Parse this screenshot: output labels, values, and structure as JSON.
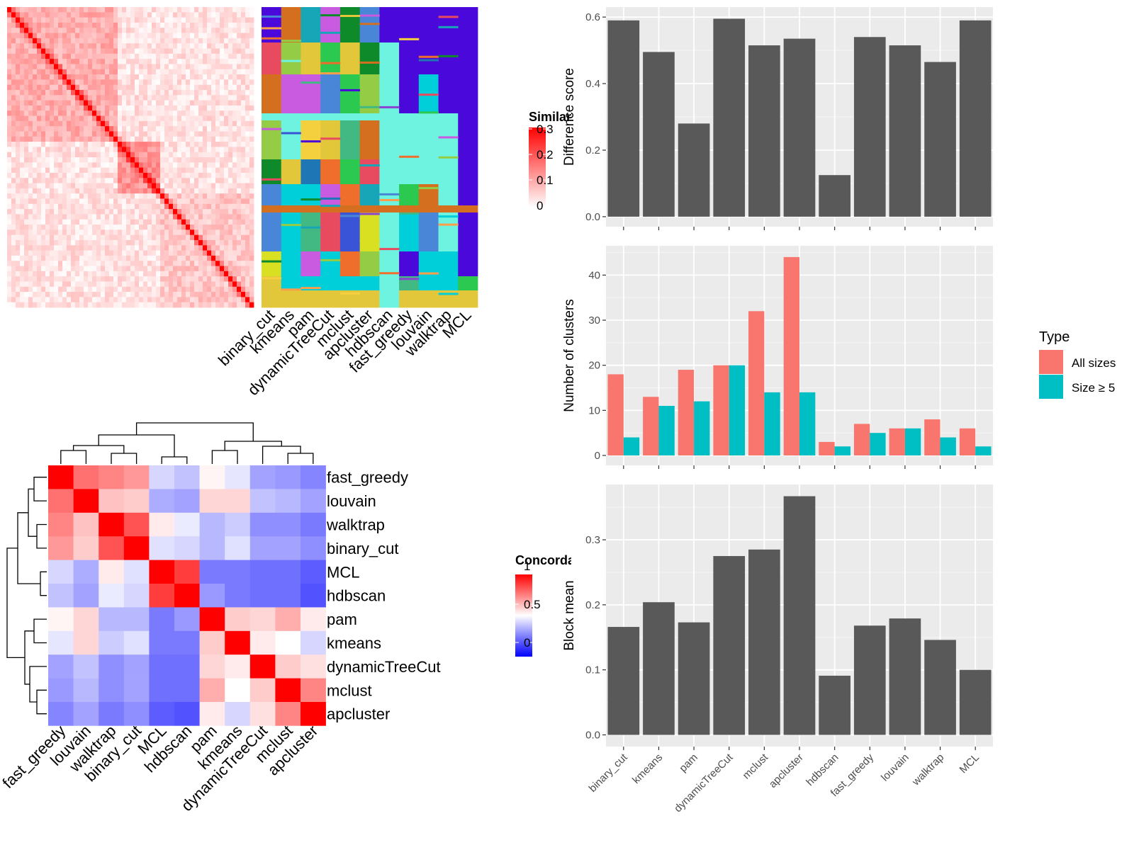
{
  "colors": {
    "panel_bg": "#EBEBEB",
    "bar_dark": "#595959",
    "all_sizes": "#F8766D",
    "size_ge5": "#00BFC4",
    "sim_high": "#FF0000",
    "conc_high": "#FF0000",
    "conc_mid": "#FFFFFF",
    "conc_low": "#0000FF"
  },
  "similarity_heatmap": {
    "legend_title": "Similarity",
    "legend_ticks": [
      "0.3",
      "0.2",
      "0.1",
      "0"
    ]
  },
  "cluster_map": {
    "methods": [
      "binary_cut",
      "kmeans",
      "pam",
      "dynamicTreeCut",
      "mclust",
      "apcluster",
      "hdbscan",
      "fast_greedy",
      "louvain",
      "walktrap",
      "MCL"
    ]
  },
  "concordance": {
    "legend_title": "Concordance",
    "legend_ticks": [
      "1",
      "0.5",
      "0"
    ],
    "methods": [
      "fast_greedy",
      "louvain",
      "walktrap",
      "binary_cut",
      "MCL",
      "hdbscan",
      "pam",
      "kmeans",
      "dynamicTreeCut",
      "mclust",
      "apcluster"
    ],
    "matrix": [
      [
        1.0,
        0.78,
        0.74,
        0.7,
        0.42,
        0.38,
        0.52,
        0.45,
        0.32,
        0.3,
        0.26
      ],
      [
        0.78,
        1.0,
        0.62,
        0.6,
        0.34,
        0.32,
        0.58,
        0.58,
        0.38,
        0.36,
        0.32
      ],
      [
        0.74,
        0.62,
        1.0,
        0.84,
        0.54,
        0.46,
        0.36,
        0.4,
        0.28,
        0.28,
        0.24
      ],
      [
        0.7,
        0.6,
        0.84,
        1.0,
        0.44,
        0.42,
        0.36,
        0.44,
        0.32,
        0.32,
        0.28
      ],
      [
        0.42,
        0.34,
        0.54,
        0.44,
        1.0,
        0.88,
        0.24,
        0.24,
        0.22,
        0.22,
        0.18
      ],
      [
        0.38,
        0.32,
        0.46,
        0.42,
        0.88,
        1.0,
        0.3,
        0.24,
        0.22,
        0.22,
        0.16
      ],
      [
        0.52,
        0.58,
        0.36,
        0.36,
        0.24,
        0.3,
        1.0,
        0.6,
        0.58,
        0.66,
        0.54
      ],
      [
        0.45,
        0.58,
        0.4,
        0.44,
        0.24,
        0.24,
        0.6,
        1.0,
        0.54,
        0.5,
        0.42
      ],
      [
        0.32,
        0.38,
        0.28,
        0.32,
        0.22,
        0.22,
        0.58,
        0.54,
        1.0,
        0.6,
        0.56
      ],
      [
        0.3,
        0.36,
        0.28,
        0.32,
        0.22,
        0.22,
        0.66,
        0.5,
        0.6,
        1.0,
        0.74
      ],
      [
        0.26,
        0.32,
        0.24,
        0.28,
        0.18,
        0.16,
        0.54,
        0.42,
        0.56,
        0.74,
        1.0
      ]
    ]
  },
  "chart_data": [
    {
      "type": "bar",
      "ylabel": "Difference score",
      "categories": [
        "binary_cut",
        "kmeans",
        "pam",
        "dynamicTreeCut",
        "mclust",
        "apcluster",
        "hdbscan",
        "fast_greedy",
        "louvain",
        "walktrap",
        "MCL"
      ],
      "values": [
        0.59,
        0.495,
        0.28,
        0.595,
        0.515,
        0.535,
        0.125,
        0.54,
        0.515,
        0.465,
        0.59
      ],
      "ylim": [
        -0.03,
        0.63
      ],
      "yticks": [
        0.0,
        0.2,
        0.4,
        0.6
      ],
      "ytick_labels": [
        "0.0",
        "0.2",
        "0.4",
        "0.6"
      ],
      "grid": true
    },
    {
      "type": "bar",
      "ylabel": "Number of clusters",
      "categories": [
        "binary_cut",
        "kmeans",
        "pam",
        "dynamicTreeCut",
        "mclust",
        "apcluster",
        "hdbscan",
        "fast_greedy",
        "louvain",
        "walktrap",
        "MCL"
      ],
      "series": [
        {
          "name": "All sizes",
          "values": [
            18,
            13,
            19,
            20,
            32,
            44,
            3,
            7,
            6,
            8,
            6
          ]
        },
        {
          "name": "Size ≥ 5",
          "values": [
            4,
            11,
            12,
            20,
            14,
            14,
            2,
            5,
            6,
            4,
            2
          ]
        }
      ],
      "ylim": [
        -2.2,
        46.5
      ],
      "yticks": [
        0,
        10,
        20,
        30,
        40
      ],
      "ytick_labels": [
        "0",
        "10",
        "20",
        "30",
        "40"
      ],
      "legend_title": "Type",
      "legend_position": "right",
      "grid": true
    },
    {
      "type": "bar",
      "ylabel": "Block mean",
      "categories": [
        "binary_cut",
        "kmeans",
        "pam",
        "dynamicTreeCut",
        "mclust",
        "apcluster",
        "hdbscan",
        "fast_greedy",
        "louvain",
        "walktrap",
        "MCL"
      ],
      "values": [
        0.166,
        0.204,
        0.173,
        0.275,
        0.285,
        0.367,
        0.091,
        0.168,
        0.179,
        0.146,
        0.1
      ],
      "ylim": [
        -0.018,
        0.385
      ],
      "yticks": [
        0.0,
        0.1,
        0.2,
        0.3
      ],
      "ytick_labels": [
        "0.0",
        "0.1",
        "0.2",
        "0.3"
      ],
      "grid": true
    }
  ]
}
